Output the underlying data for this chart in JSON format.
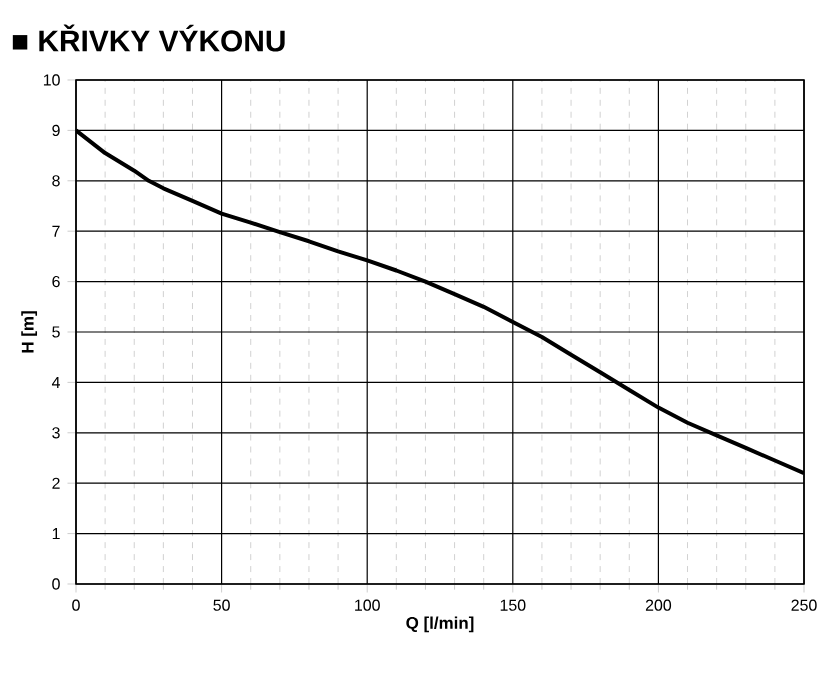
{
  "chart_data": {
    "type": "line",
    "title": "■ KŘIVKY VÝKONU",
    "xlabel": "Q [l/min]",
    "ylabel": "H [m]",
    "x": [
      0,
      10,
      20,
      25,
      30,
      40,
      50,
      60,
      70,
      80,
      90,
      100,
      110,
      120,
      130,
      140,
      150,
      160,
      170,
      180,
      190,
      200,
      210,
      220,
      230,
      240,
      250
    ],
    "series": [
      {
        "color": "#000000",
        "values": [
          9,
          8.55,
          8.2,
          8.0,
          7.85,
          7.6,
          7.35,
          7.17,
          6.98,
          6.8,
          6.6,
          6.42,
          6.22,
          6.0,
          5.75,
          5.5,
          5.2,
          4.9,
          4.55,
          4.2,
          3.85,
          3.5,
          3.2,
          2.95,
          2.7,
          2.45,
          2.2
        ]
      }
    ],
    "xlim": [
      0,
      250
    ],
    "ylim": [
      0,
      10
    ],
    "xticks": [
      0,
      50,
      100,
      150,
      200,
      250
    ],
    "yticks": [
      0,
      1,
      2,
      3,
      4,
      5,
      6,
      7,
      8,
      9,
      10
    ],
    "grid": true,
    "marker": "none",
    "line_style": "solid"
  }
}
